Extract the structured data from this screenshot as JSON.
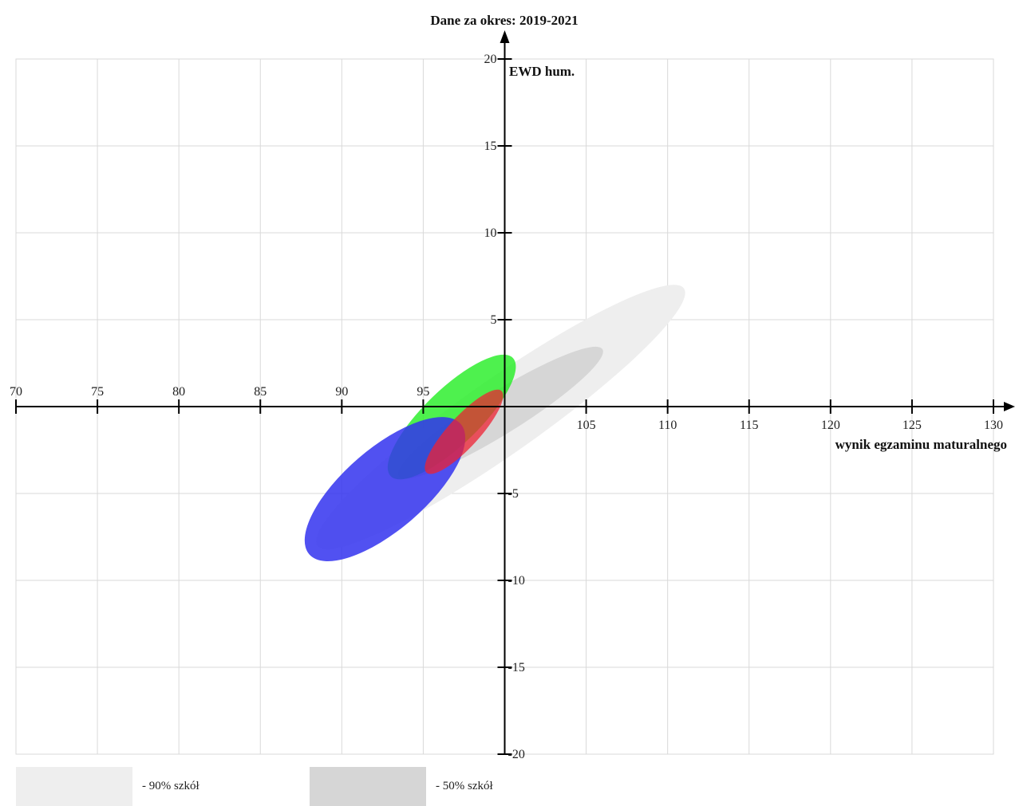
{
  "chart_data": {
    "type": "scatter",
    "title": "Dane za okres: 2019-2021",
    "xlabel": "wynik egzaminu maturalnego",
    "ylabel": "EWD hum.",
    "xlim": [
      70,
      130
    ],
    "ylim": [
      -20,
      20
    ],
    "x_ticks": [
      70,
      75,
      80,
      85,
      90,
      95,
      105,
      110,
      115,
      120,
      125,
      130
    ],
    "y_ticks": [
      20,
      15,
      10,
      5,
      -5,
      -10,
      -15,
      -20
    ],
    "grid": true,
    "ellipses": [
      {
        "name": "90% szkół",
        "cx": 100,
        "cy": 0,
        "end1": [
          88.5,
          -8
        ],
        "end2": [
          111,
          6.8
        ],
        "halfwidth": 2.3,
        "color": "#eeeeee",
        "opacity": 1.0
      },
      {
        "name": "50% szkół",
        "cx": 100,
        "cy": 0,
        "end1": [
          93.5,
          -4
        ],
        "end2": [
          106,
          3.3
        ],
        "halfwidth": 1.3,
        "color": "#d6d6d6",
        "opacity": 1.0
      },
      {
        "cx": 98.1,
        "cy": -0.5,
        "end1": [
          93,
          -4
        ],
        "end2": [
          100.5,
          2.8
        ],
        "halfwidth": 1.7,
        "color": "#22ee22",
        "opacity": 0.8
      },
      {
        "cx": 92.2,
        "cy": -5.5,
        "end1": [
          88,
          -8.5
        ],
        "end2": [
          97.3,
          -1
        ],
        "halfwidth": 2.5,
        "color": "#3333ee",
        "opacity": 0.85
      },
      {
        "cx": 97.6,
        "cy": -1.8,
        "end1": [
          95.2,
          -3.8
        ],
        "end2": [
          99.8,
          0.9
        ],
        "halfwidth": 0.95,
        "color": "#ee2233",
        "opacity": 0.75
      }
    ]
  },
  "legend": [
    {
      "label": "- 90% szkół",
      "color": "#eeeeee"
    },
    {
      "label": "- 50% szkół",
      "color": "#d6d6d6"
    }
  ]
}
